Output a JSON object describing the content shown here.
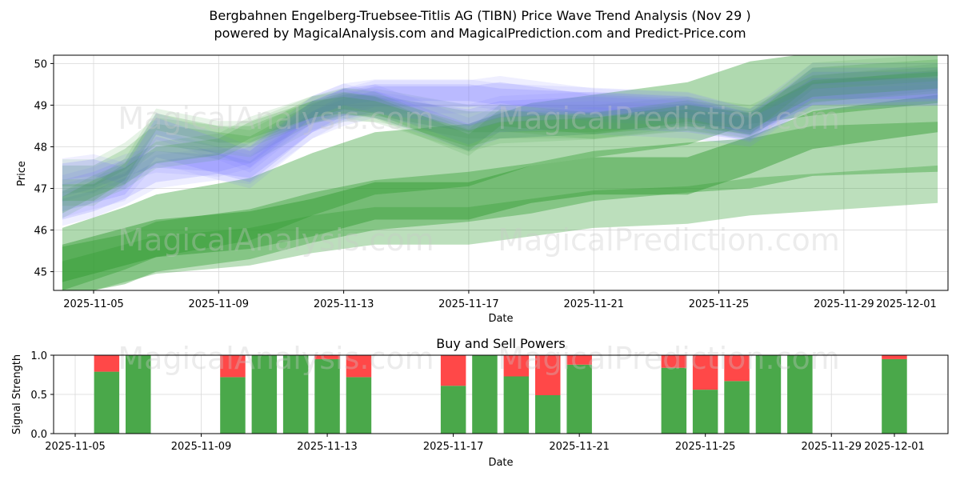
{
  "title_line1": "Bergbahnen Engelberg-Truebsee-Titlis AG (TIBN) Price Wave Trend Analysis (Nov 29 )",
  "title_line2": "powered by MagicalAnalysis.com and MagicalPrediction.com and Predict-Price.com",
  "watermarks": [
    "MagicalAnalysis.com",
    "MagicalPrediction.com"
  ],
  "colors": {
    "green": "#2e9a2e",
    "blue": "#7a7aff",
    "buy": "#4aa84a",
    "sell": "#ff4848"
  },
  "chart_data": [
    {
      "type": "area",
      "title": "",
      "xlabel": "Date",
      "ylabel": "Price",
      "x_range": [
        "2025-11-04",
        "2025-12-02"
      ],
      "ylim": [
        44.55,
        50.2
      ],
      "grid": true,
      "x_ticks": [
        "2025-11-05",
        "2025-11-09",
        "2025-11-13",
        "2025-11-17",
        "2025-11-21",
        "2025-11-25",
        "2025-11-29",
        "2025-12-01"
      ],
      "y_ticks": [
        45,
        46,
        47,
        48,
        49,
        50
      ],
      "band_dates": [
        "2025-11-04",
        "2025-11-06",
        "2025-11-07",
        "2025-11-10",
        "2025-11-12",
        "2025-11-14",
        "2025-11-17",
        "2025-11-19",
        "2025-11-21",
        "2025-11-24",
        "2025-11-26",
        "2025-11-28",
        "2025-12-02"
      ],
      "green_series": [
        {
          "name": "long-term upper",
          "values": [
            45.3,
            45.8,
            46.1,
            46.5,
            47.1,
            47.6,
            47.8,
            48.3,
            48.5,
            48.8,
            49.3,
            49.5,
            49.8
          ],
          "half_width": 0.75,
          "opacity": 0.38
        },
        {
          "name": "long-term lower",
          "values": [
            45.0,
            45.3,
            45.6,
            45.9,
            46.3,
            46.6,
            46.8,
            47.0,
            47.3,
            47.5,
            47.6,
            47.9,
            48.0
          ],
          "half_width": 0.6,
          "opacity": 0.38
        },
        {
          "name": "long-term base",
          "values": [
            45.2,
            45.6,
            45.8,
            46.0,
            46.3,
            46.7,
            46.7,
            47.1,
            47.3,
            47.3,
            47.8,
            48.4,
            48.8
          ],
          "half_width": 0.45,
          "opacity": 0.45
        },
        {
          "name": "mid-term lower",
          "values": [
            44.8,
            45.2,
            45.4,
            45.6,
            45.9,
            46.1,
            46.1,
            46.3,
            46.5,
            46.6,
            46.8,
            46.9,
            47.1
          ],
          "half_width": 0.45,
          "opacity": 0.32
        }
      ],
      "wave_dates": [
        "2025-11-04",
        "2025-11-05",
        "2025-11-06",
        "2025-11-07",
        "2025-11-09",
        "2025-11-10",
        "2025-11-12",
        "2025-11-13",
        "2025-11-14",
        "2025-11-17",
        "2025-11-18",
        "2025-11-21",
        "2025-11-24",
        "2025-11-26",
        "2025-11-28",
        "2025-12-02"
      ],
      "wave_series": [
        {
          "name": "wave-a",
          "color": "green",
          "values": [
            47.3,
            47.3,
            47.7,
            48.3,
            48.1,
            48.0,
            48.8,
            49.0,
            49.0,
            48.6,
            48.6,
            48.6,
            48.8,
            48.6,
            49.3,
            49.6
          ],
          "half_width": 0.25
        },
        {
          "name": "wave-b",
          "color": "blue",
          "values": [
            46.7,
            46.9,
            47.1,
            48.0,
            47.6,
            47.5,
            48.6,
            49.0,
            49.2,
            49.2,
            49.3,
            49.0,
            48.9,
            48.5,
            49.4,
            49.4
          ],
          "half_width": 0.25
        },
        {
          "name": "wave-c",
          "color": "blue",
          "values": [
            46.5,
            46.7,
            47.0,
            47.4,
            47.6,
            47.4,
            48.6,
            48.9,
            49.1,
            48.3,
            48.6,
            48.7,
            48.6,
            48.4,
            49.4,
            49.4
          ],
          "half_width": 0.25
        },
        {
          "name": "wave-d",
          "color": "blue",
          "values": [
            47.0,
            47.2,
            47.5,
            47.7,
            47.6,
            47.8,
            48.9,
            49.2,
            49.3,
            49.3,
            49.2,
            49.1,
            49.0,
            48.6,
            49.7,
            49.7
          ],
          "half_width": 0.2
        },
        {
          "name": "wave-e",
          "color": "green",
          "values": [
            46.9,
            46.9,
            47.4,
            48.6,
            48.3,
            48.3,
            48.9,
            49.1,
            49.0,
            48.1,
            48.7,
            48.5,
            48.7,
            48.5,
            49.7,
            49.9
          ],
          "half_width": 0.2
        },
        {
          "name": "wave-f",
          "color": "blue",
          "values": [
            47.4,
            47.5,
            47.3,
            48.5,
            48.0,
            47.7,
            48.9,
            49.2,
            49.0,
            48.7,
            48.9,
            49.0,
            48.9,
            48.5,
            49.2,
            49.3
          ],
          "half_width": 0.2
        },
        {
          "name": "wave-g",
          "color": "green",
          "values": [
            46.6,
            47.0,
            47.3,
            47.8,
            48.0,
            48.4,
            48.9,
            49.0,
            48.9,
            48.2,
            48.4,
            48.5,
            48.8,
            48.6,
            49.4,
            49.6
          ],
          "half_width": 0.2
        }
      ]
    },
    {
      "type": "bar",
      "title": "Buy and Sell Powers",
      "xlabel": "Date",
      "ylabel": "Signal Strength",
      "x_range": [
        "2025-11-04",
        "2025-12-02"
      ],
      "ylim": [
        0,
        1.0
      ],
      "grid": true,
      "x_ticks": [
        "2025-11-05",
        "2025-11-09",
        "2025-11-13",
        "2025-11-17",
        "2025-11-21",
        "2025-11-25",
        "2025-11-29",
        "2025-12-01"
      ],
      "y_ticks": [
        "0.0",
        "0.5",
        "1.0"
      ],
      "series": [
        {
          "name": "Buy",
          "color": "buy"
        },
        {
          "name": "Sell",
          "color": "sell"
        }
      ],
      "bars": [
        {
          "date": "2025-11-06",
          "buy": 0.79
        },
        {
          "date": "2025-11-07",
          "buy": 1.0
        },
        {
          "date": "2025-11-10",
          "buy": 0.72
        },
        {
          "date": "2025-11-11",
          "buy": 1.0
        },
        {
          "date": "2025-11-12",
          "buy": 1.0
        },
        {
          "date": "2025-11-13",
          "buy": 0.95
        },
        {
          "date": "2025-11-14",
          "buy": 0.72
        },
        {
          "date": "2025-11-17",
          "buy": 0.61
        },
        {
          "date": "2025-11-18",
          "buy": 1.0
        },
        {
          "date": "2025-11-19",
          "buy": 0.73
        },
        {
          "date": "2025-11-20",
          "buy": 0.49
        },
        {
          "date": "2025-11-21",
          "buy": 0.88
        },
        {
          "date": "2025-11-24",
          "buy": 0.84
        },
        {
          "date": "2025-11-25",
          "buy": 0.56
        },
        {
          "date": "2025-11-26",
          "buy": 0.67
        },
        {
          "date": "2025-11-27",
          "buy": 1.0
        },
        {
          "date": "2025-11-28",
          "buy": 1.0
        },
        {
          "date": "2025-12-01",
          "buy": 0.95
        }
      ]
    }
  ]
}
